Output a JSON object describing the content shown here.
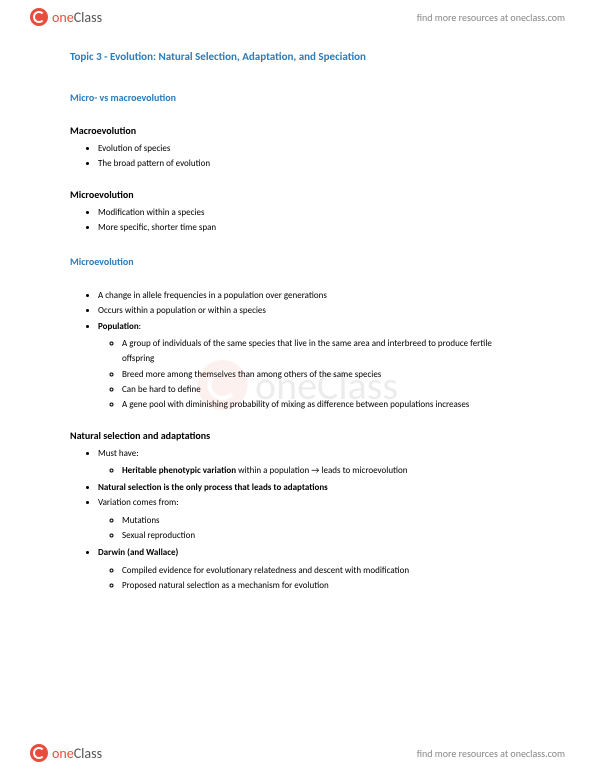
{
  "brand": {
    "name_part1": "one",
    "name_part2": "Class",
    "tagline": "find more resources at oneclass.com"
  },
  "topic_title": "Topic 3 - Evolution: Natural Selection, Adaptation, and Speciation",
  "section1": {
    "heading": "Micro- vs macroevolution",
    "macro": {
      "title": "Macroevolution",
      "items": [
        "Evolution of species",
        "The broad pattern of evolution"
      ]
    },
    "micro": {
      "title": "Microevolution",
      "items": [
        "Modification within a species",
        "More specific, shorter time span"
      ]
    }
  },
  "section2": {
    "heading": "Microevolution",
    "items": [
      "A change in allele frequencies in a population over generations",
      "Occurs within a population or within a species"
    ],
    "population_label": "Population",
    "population_items": [
      "A group of individuals of the same species that live in the same area and interbreed to produce fertile offspring",
      "Breed more among themselves than among others of the same species",
      "Can be hard to define",
      "A gene pool with diminishing probability of mixing as difference between populations increases"
    ]
  },
  "section3": {
    "heading": "Natural selection and adaptations",
    "must_have_label": "Must have:",
    "heritable_bold": "Heritable phenotypic variation",
    "heritable_rest": " within a population → leads to microevolution",
    "natsel_bold": "Natural selection is the only process that leads to adaptations",
    "variation_label": "Variation comes from:",
    "variation_items": [
      "Mutations",
      "Sexual reproduction"
    ],
    "darwin_bold": "Darwin (and Wallace)",
    "darwin_items": [
      "Compiled evidence for evolutionary relatedness and descent with modification",
      "Proposed natural selection as a mechanism for evolution"
    ]
  },
  "colors": {
    "heading_blue": "#2e7cb8",
    "logo_red": "#e74c3c",
    "text": "#000000"
  }
}
